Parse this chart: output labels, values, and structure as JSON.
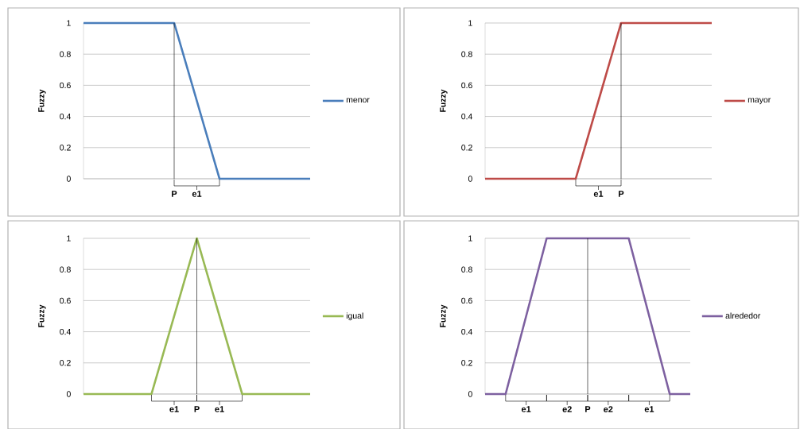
{
  "chart_data": [
    {
      "type": "line",
      "ylabel": "Fuzzy",
      "categories": [
        null,
        null,
        null,
        null,
        null,
        null
      ],
      "series": [
        {
          "name": "menor",
          "color": "#4a7ebb",
          "values": [
            1,
            1,
            1,
            0,
            0,
            0
          ]
        }
      ],
      "ylim": [
        0,
        1
      ],
      "yticks": [
        0,
        0.2,
        0.4,
        0.6,
        0.8,
        1
      ],
      "grid": "y",
      "legend": "right",
      "marker": "none",
      "line_style": "solid",
      "annotations": [
        "P",
        "e1"
      ]
    },
    {
      "type": "line",
      "ylabel": "Fuzzy",
      "categories": [
        null,
        null,
        null,
        null,
        null,
        null
      ],
      "series": [
        {
          "name": "mayor",
          "color": "#be4b48",
          "values": [
            0,
            0,
            0,
            1,
            1,
            1
          ]
        }
      ],
      "ylim": [
        0,
        1
      ],
      "yticks": [
        0,
        0.2,
        0.4,
        0.6,
        0.8,
        1
      ],
      "grid": "y",
      "legend": "right",
      "marker": "none",
      "line_style": "solid",
      "annotations": [
        "e1",
        "P"
      ]
    },
    {
      "type": "line",
      "ylabel": "Fuzzy",
      "categories": [
        null,
        null,
        null,
        null,
        null,
        null,
        null,
        null,
        null,
        null,
        null
      ],
      "series": [
        {
          "name": "igual",
          "color": "#98b954",
          "values": [
            0,
            0,
            0,
            0,
            0.5,
            1,
            0.5,
            0,
            0,
            0,
            0
          ]
        }
      ],
      "ylim": [
        0,
        1
      ],
      "yticks": [
        0,
        0.2,
        0.4,
        0.6,
        0.8,
        1
      ],
      "grid": "y",
      "legend": "right",
      "marker": "none",
      "line_style": "solid",
      "annotations": [
        "e1",
        "P",
        "e1"
      ]
    },
    {
      "type": "line",
      "ylabel": "Fuzzy",
      "categories": [
        null,
        null,
        null,
        null,
        null,
        null,
        null,
        null,
        null,
        null,
        null
      ],
      "series": [
        {
          "name": "alrededor",
          "color": "#7d60a0",
          "values": [
            0,
            0,
            0.5,
            1,
            1,
            1,
            1,
            1,
            0.5,
            0,
            0
          ]
        }
      ],
      "ylim": [
        0,
        1
      ],
      "yticks": [
        0,
        0.2,
        0.4,
        0.6,
        0.8,
        1
      ],
      "grid": "y",
      "legend": "right",
      "marker": "none",
      "line_style": "solid",
      "annotations": [
        "e1",
        "e2",
        "P",
        "e2",
        "e1"
      ]
    }
  ]
}
